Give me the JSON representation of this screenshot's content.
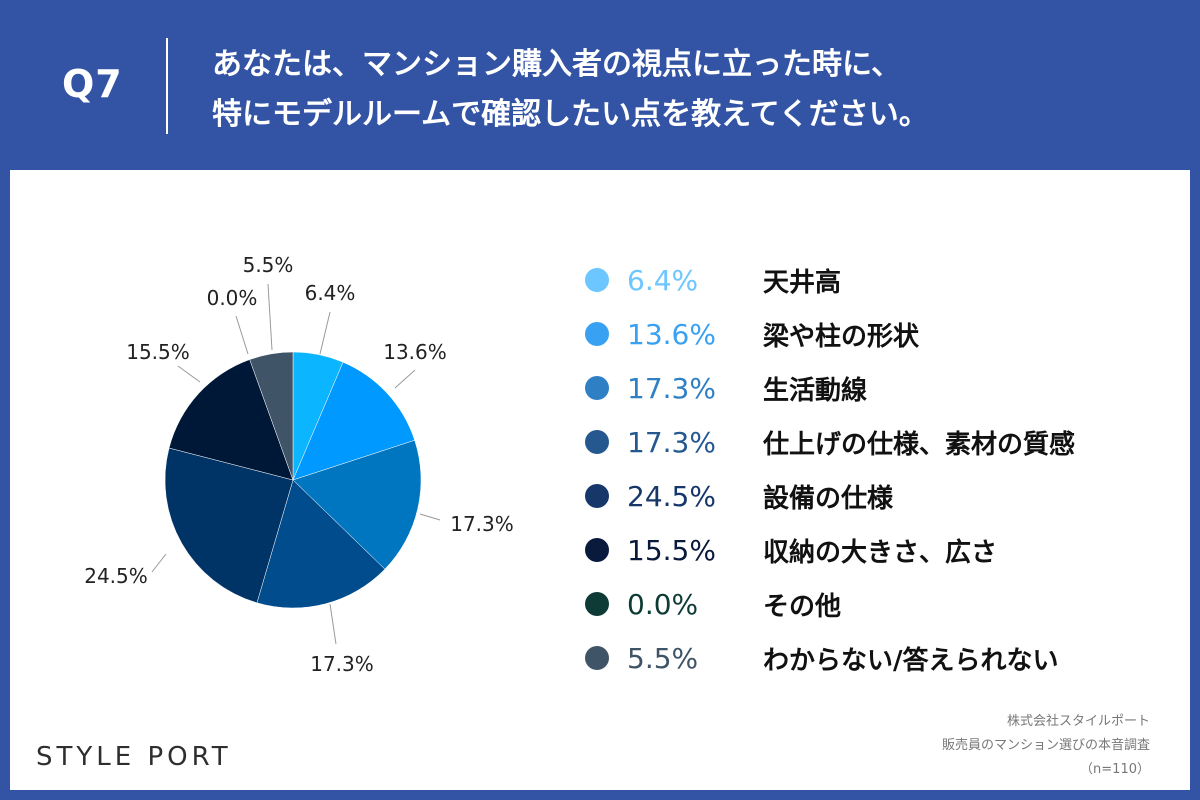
{
  "header": {
    "q_label": "Q7",
    "question_line1": "あなたは、マンション購入者の視点に立った時に、",
    "question_line2": "特にモデルルームで確認したい点を教えてください。"
  },
  "chart_data": {
    "type": "pie",
    "title": "",
    "legend_position": "right",
    "slices": [
      {
        "label": "天井高",
        "value": 6.4,
        "display": "6.4%",
        "color": "#0bb5ff"
      },
      {
        "label": "梁や柱の形状",
        "value": 13.6,
        "display": "13.6%",
        "color": "#0099ff"
      },
      {
        "label": "生活動線",
        "value": 17.3,
        "display": "17.3%",
        "color": "#0076c0"
      },
      {
        "label": "仕上げの仕様、素材の質感",
        "value": 17.3,
        "display": "17.3%",
        "color": "#004c8c"
      },
      {
        "label": "設備の仕様",
        "value": 24.5,
        "display": "24.5%",
        "color": "#003366"
      },
      {
        "label": "収納の大きさ、広さ",
        "value": 15.5,
        "display": "15.5%",
        "color": "#001838"
      },
      {
        "label": "その他",
        "value": 0.0,
        "display": "0.0%",
        "color": "#0d3a36"
      },
      {
        "label": "わからない/答えられない",
        "value": 5.5,
        "display": "5.5%",
        "color": "#3f5466"
      }
    ]
  },
  "legend_colors": {
    "dots": [
      "#6cc6ff",
      "#38a1f2",
      "#2f7fc4",
      "#24588f",
      "#17376b",
      "#0a1a3c",
      "#0f3b36",
      "#3f5466"
    ],
    "values": [
      "#6cc6ff",
      "#38a1f2",
      "#2f7fc4",
      "#24588f",
      "#17376b",
      "#0a1a3c",
      "#0f3b36",
      "#3f5466"
    ]
  },
  "footer": {
    "logo": "STYLE PORT",
    "source_line1": "株式会社スタイルポート",
    "source_line2": "販売員のマンション選びの本音調査",
    "source_line3": "（n=110）"
  }
}
